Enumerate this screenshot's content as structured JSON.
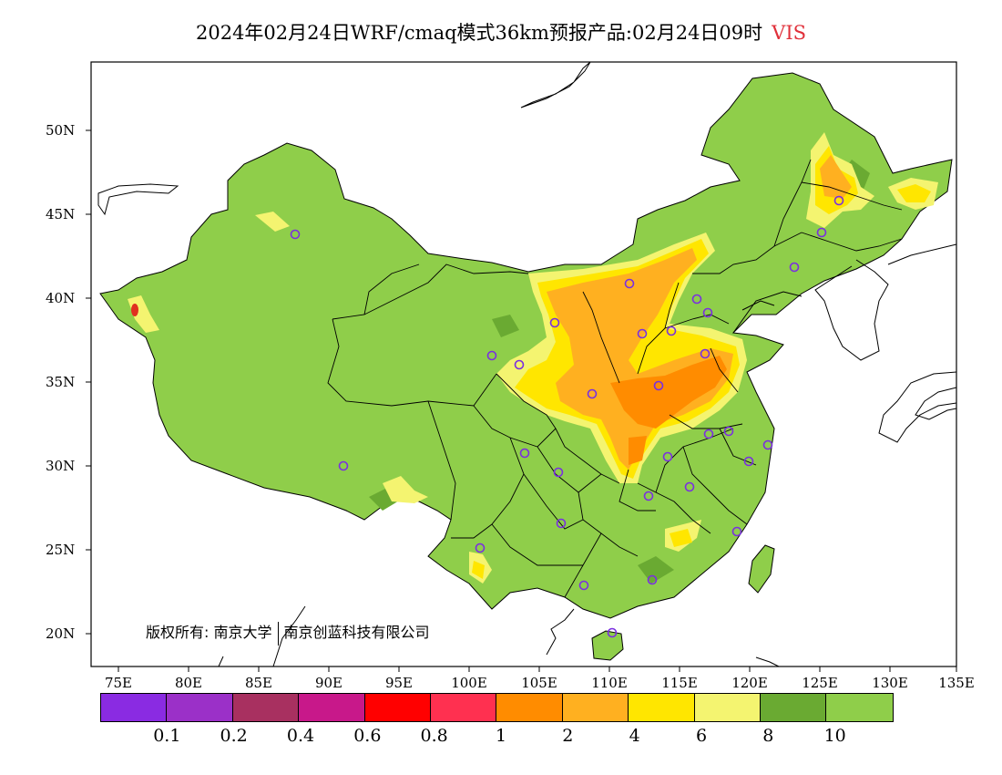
{
  "title": {
    "main": "2024年02月24日WRF/cmaq模式36km预报产品:02月24日09时",
    "variable": "VIS",
    "variable_color": "#e0303a"
  },
  "axes": {
    "lat_labels": [
      "50N",
      "45N",
      "40N",
      "35N",
      "30N",
      "25N",
      "20N"
    ],
    "lon_labels": [
      "75E",
      "80E",
      "85E",
      "90E",
      "95E",
      "100E",
      "105E",
      "110E",
      "115E",
      "120E",
      "125E",
      "130E",
      "135E"
    ]
  },
  "copyright": {
    "prefix": "版权所有:",
    "org1": "南京大学",
    "org2": "南京创蓝科技有限公司"
  },
  "colorbar": {
    "colors": [
      "#8a2be2",
      "#9b30c8",
      "#a83060",
      "#c8188a",
      "#ff0000",
      "#ff3050",
      "#ff8c00",
      "#ffb020",
      "#ffe600",
      "#f4f470",
      "#6aaa32",
      "#8fce4a"
    ],
    "labels": [
      "0.1",
      "0.2",
      "0.4",
      "0.6",
      "0.8",
      "1",
      "2",
      "4",
      "6",
      "8",
      "10"
    ]
  },
  "palette": {
    "land_good": "#8fce4a",
    "land_dark": "#6aaa32",
    "yellow_light": "#f4f470",
    "yellow": "#ffe600",
    "orange_light": "#ffb020",
    "orange": "#ff8c00",
    "red": "#e03020",
    "station": "#7a2fe0"
  }
}
